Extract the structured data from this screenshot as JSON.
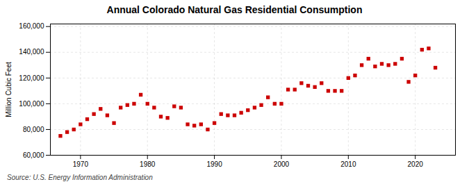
{
  "chart_data": {
    "type": "scatter",
    "title": "Annual Colorado Natural Gas Residential Consumption",
    "ylabel": "Million Cubic Feet",
    "source": "Source: U.S. Energy Information Administration",
    "color": "#cc0000",
    "marker": "square",
    "grid": true,
    "x": [
      1967,
      1968,
      1969,
      1970,
      1971,
      1972,
      1973,
      1974,
      1975,
      1976,
      1977,
      1978,
      1979,
      1980,
      1981,
      1982,
      1983,
      1984,
      1985,
      1986,
      1987,
      1988,
      1989,
      1990,
      1991,
      1992,
      1993,
      1994,
      1995,
      1996,
      1997,
      1998,
      1999,
      2000,
      2001,
      2002,
      2003,
      2004,
      2005,
      2006,
      2007,
      2008,
      2009,
      2010,
      2011,
      2012,
      2013,
      2014,
      2015,
      2016,
      2017,
      2018,
      2019,
      2020,
      2021,
      2022,
      2023
    ],
    "values": [
      75000,
      78000,
      80000,
      84000,
      88000,
      92000,
      96000,
      91000,
      85000,
      97000,
      99000,
      100000,
      107000,
      100000,
      97000,
      90000,
      89000,
      98000,
      97000,
      84000,
      83000,
      84000,
      80000,
      85000,
      92000,
      91000,
      91000,
      93000,
      95000,
      97000,
      99000,
      105000,
      100000,
      100000,
      111000,
      111000,
      116000,
      114000,
      113000,
      116000,
      110000,
      110000,
      110000,
      120000,
      122000,
      130000,
      135000,
      129000,
      131000,
      130000,
      131000,
      135000,
      117000,
      122000,
      142000,
      143000,
      128000
    ],
    "xlim": [
      1965.5,
      2026
    ],
    "xticks": [
      1970,
      1980,
      1990,
      2000,
      2010,
      2020
    ],
    "ylim": [
      60000,
      162000
    ],
    "yticks": [
      {
        "value": 60000,
        "label": "60,000"
      },
      {
        "value": 80000,
        "label": "80,000"
      },
      {
        "value": 100000,
        "label": "100,000"
      },
      {
        "value": 120000,
        "label": "120,000"
      },
      {
        "value": 140000,
        "label": "140,000"
      },
      {
        "value": 160000,
        "label": "160,000"
      }
    ]
  }
}
